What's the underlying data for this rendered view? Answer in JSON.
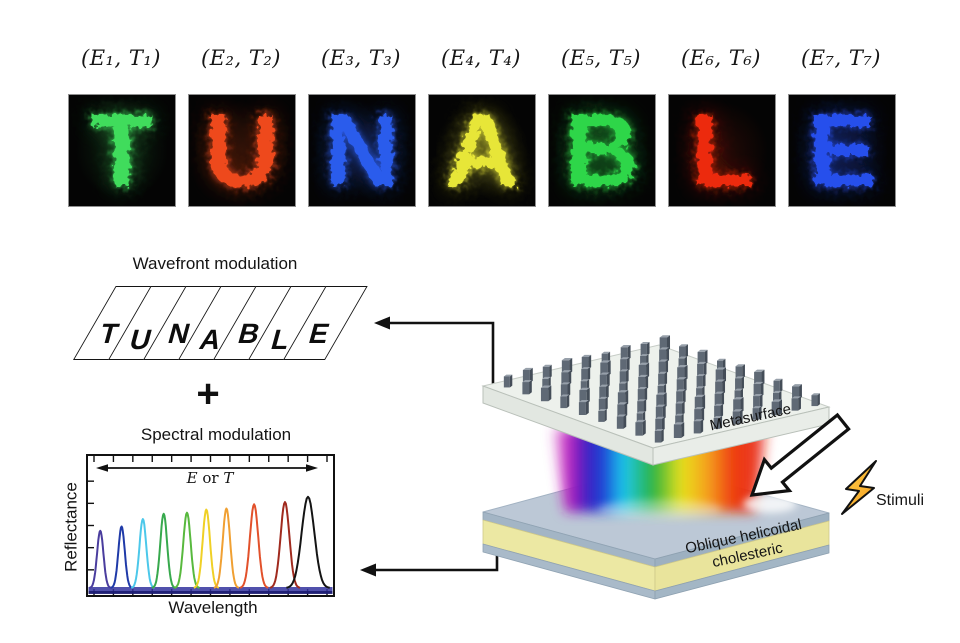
{
  "panel_labels": [
    "(E₁, T₁)",
    "(E₂, T₂)",
    "(E₃, T₃)",
    "(E₄, T₄)",
    "(E₅, T₅)",
    "(E₆, T₆)",
    "(E₇, T₇)"
  ],
  "tiles": [
    {
      "letter": "T",
      "color": "#3fdc5c"
    },
    {
      "letter": "U",
      "color": "#ee4a1d"
    },
    {
      "letter": "N",
      "color": "#2b5cec"
    },
    {
      "letter": "A",
      "color": "#e7e637"
    },
    {
      "letter": "B",
      "color": "#2ed648"
    },
    {
      "letter": "L",
      "color": "#ec2a10"
    },
    {
      "letter": "E",
      "color": "#274fec"
    }
  ],
  "wavefront": {
    "title": "Wavefront modulation",
    "letters": [
      "T",
      "U",
      "N",
      "A",
      "B",
      "L",
      "E"
    ]
  },
  "plus_sign": "+",
  "spectral": {
    "title": "Spectral modulation"
  },
  "chart_data": {
    "type": "line",
    "title": "Spectral modulation",
    "xlabel": "Wavelength",
    "ylabel": "Reflectance",
    "annotation_parts": [
      "E",
      " or ",
      "T"
    ],
    "axes_note": "axes unlabeled; x and height are relative (0-1) positions read from the figure",
    "grid": false,
    "legend": "none",
    "series": [
      {
        "name": "peak-1",
        "color": "#4a3d9e",
        "x": 0.05,
        "height": 0.54,
        "width": 0.013
      },
      {
        "name": "peak-2",
        "color": "#1f3aa8",
        "x": 0.137,
        "height": 0.58,
        "width": 0.013
      },
      {
        "name": "peak-3",
        "color": "#4cc8ea",
        "x": 0.224,
        "height": 0.65,
        "width": 0.014
      },
      {
        "name": "peak-4",
        "color": "#37a94d",
        "x": 0.309,
        "height": 0.7,
        "width": 0.014
      },
      {
        "name": "peak-5",
        "color": "#58b93e",
        "x": 0.404,
        "height": 0.71,
        "width": 0.015
      },
      {
        "name": "peak-6",
        "color": "#f0d026",
        "x": 0.483,
        "height": 0.74,
        "width": 0.015
      },
      {
        "name": "peak-7",
        "color": "#f0a032",
        "x": 0.565,
        "height": 0.75,
        "width": 0.015
      },
      {
        "name": "peak-8",
        "color": "#e2512b",
        "x": 0.678,
        "height": 0.79,
        "width": 0.017
      },
      {
        "name": "peak-9",
        "color": "#a02a1e",
        "x": 0.804,
        "height": 0.81,
        "width": 0.018
      },
      {
        "name": "peak-10",
        "color": "#141414",
        "x": 0.898,
        "height": 0.86,
        "width": 0.026
      }
    ]
  },
  "device": {
    "metasurface_label": "Metasurface",
    "cholesteric_label_line1": "Oblique helicoidal",
    "cholesteric_label_line2": "cholesteric",
    "stimuli_label": "Stimuli"
  }
}
